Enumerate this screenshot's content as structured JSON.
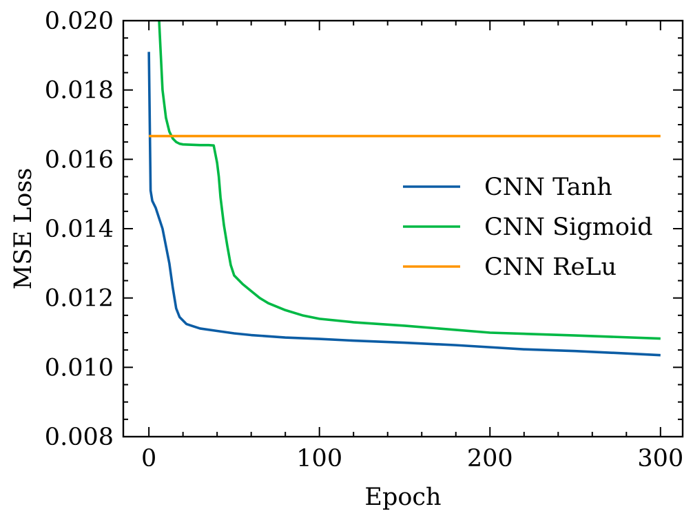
{
  "chart_data": {
    "type": "line",
    "title": "",
    "xlabel": "Epoch",
    "ylabel": "MSE Loss",
    "xlim": [
      -15,
      313
    ],
    "ylim": [
      0.008,
      0.02
    ],
    "xticks": [
      0,
      100,
      200,
      300
    ],
    "xtick_labels": [
      "0",
      "100",
      "200",
      "300"
    ],
    "yticks": [
      0.008,
      0.01,
      0.012,
      0.014,
      0.016,
      0.018,
      0.02
    ],
    "ytick_labels": [
      "0.008",
      "0.010",
      "0.012",
      "0.014",
      "0.016",
      "0.018",
      "0.020"
    ],
    "grid": false,
    "legend_position": "center-right",
    "series": [
      {
        "name": "CNN Tanh",
        "color": "#0C5DA5",
        "x": [
          0,
          1,
          2,
          4,
          6,
          8,
          10,
          12,
          14,
          15,
          16,
          18,
          20,
          22,
          25,
          30,
          40,
          50,
          60,
          80,
          100,
          120,
          150,
          180,
          200,
          220,
          250,
          280,
          300
        ],
        "y": [
          0.0191,
          0.0151,
          0.0148,
          0.0146,
          0.0143,
          0.014,
          0.0135,
          0.013,
          0.0123,
          0.012,
          0.0117,
          0.01145,
          0.01135,
          0.01125,
          0.0112,
          0.01112,
          0.01105,
          0.01098,
          0.01093,
          0.01086,
          0.01082,
          0.01077,
          0.01071,
          0.01064,
          0.01058,
          0.01052,
          0.01047,
          0.0104,
          0.01035
        ]
      },
      {
        "name": "CNN Sigmoid",
        "color": "#00B945",
        "x": [
          6,
          7,
          8,
          10,
          12,
          14,
          16,
          18,
          20,
          25,
          30,
          35,
          38,
          40,
          41,
          42,
          43,
          44,
          46,
          48,
          50,
          55,
          60,
          65,
          70,
          80,
          90,
          100,
          120,
          150,
          200,
          250,
          300
        ],
        "y": [
          0.02,
          0.019,
          0.018,
          0.0172,
          0.0168,
          0.0166,
          0.0165,
          0.01645,
          0.01643,
          0.01642,
          0.01641,
          0.01641,
          0.0164,
          0.0159,
          0.0155,
          0.0149,
          0.0145,
          0.0141,
          0.0135,
          0.01295,
          0.01265,
          0.0124,
          0.0122,
          0.012,
          0.01185,
          0.01165,
          0.0115,
          0.0114,
          0.0113,
          0.0112,
          0.011,
          0.01092,
          0.01083
        ]
      },
      {
        "name": "CNN ReLu",
        "color": "#FF9500",
        "x": [
          0,
          300
        ],
        "y": [
          0.01667,
          0.01667
        ]
      }
    ]
  }
}
